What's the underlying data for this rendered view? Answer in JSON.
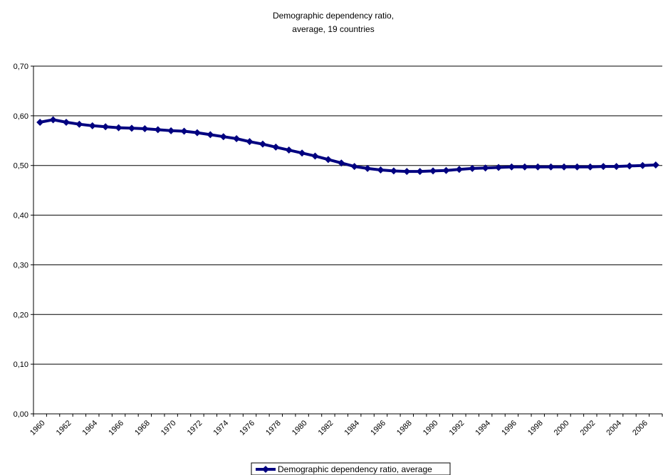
{
  "chart_data": {
    "type": "line",
    "title_lines": [
      "Demographic dependency ratio,",
      "average, 19 countries"
    ],
    "xlabel": "",
    "ylabel": "",
    "ylim": [
      0,
      0.7
    ],
    "yticks": [
      "0,00",
      "0,10",
      "0,20",
      "0,30",
      "0,40",
      "0,50",
      "0,60",
      "0,70"
    ],
    "x_tick_labels": [
      "1960",
      "1962",
      "1964",
      "1966",
      "1968",
      "1970",
      "1972",
      "1974",
      "1976",
      "1978",
      "1980",
      "1982",
      "1984",
      "1986",
      "1988",
      "1990",
      "1992",
      "1994",
      "1996",
      "1998",
      "2000",
      "2002",
      "2004",
      "2006"
    ],
    "grid": true,
    "legend_position": "bottom",
    "series": [
      {
        "name": "Demographic dependency ratio, average",
        "color": "#000080",
        "x": [
          1960,
          1961,
          1962,
          1963,
          1964,
          1965,
          1966,
          1967,
          1968,
          1969,
          1970,
          1971,
          1972,
          1973,
          1974,
          1975,
          1976,
          1977,
          1978,
          1979,
          1980,
          1981,
          1982,
          1983,
          1984,
          1985,
          1986,
          1987,
          1988,
          1989,
          1990,
          1991,
          1992,
          1993,
          1994,
          1995,
          1996,
          1997,
          1998,
          1999,
          2000,
          2001,
          2002,
          2003,
          2004,
          2005,
          2006,
          2007
        ],
        "values": [
          0.587,
          0.592,
          0.587,
          0.583,
          0.58,
          0.578,
          0.576,
          0.575,
          0.574,
          0.572,
          0.57,
          0.569,
          0.566,
          0.562,
          0.558,
          0.554,
          0.548,
          0.543,
          0.537,
          0.531,
          0.525,
          0.519,
          0.512,
          0.505,
          0.498,
          0.494,
          0.491,
          0.489,
          0.488,
          0.488,
          0.489,
          0.49,
          0.492,
          0.494,
          0.495,
          0.496,
          0.497,
          0.497,
          0.497,
          0.497,
          0.497,
          0.497,
          0.497,
          0.498,
          0.498,
          0.499,
          0.5,
          0.501
        ]
      }
    ]
  }
}
